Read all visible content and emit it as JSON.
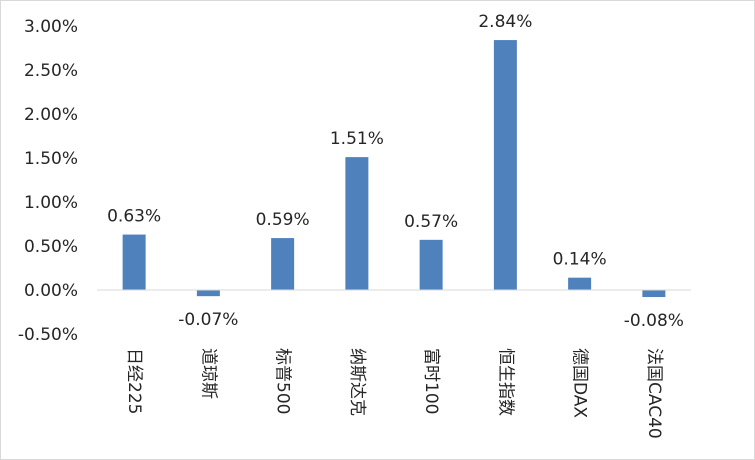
{
  "chart_data": {
    "type": "bar",
    "title": "",
    "xlabel": "",
    "ylabel": "",
    "categories": [
      "日经225",
      "道琼斯",
      "标普500",
      "纳斯达克",
      "富时100",
      "恒生指数",
      "德国DAX",
      "法国CAC40"
    ],
    "values": [
      0.63,
      -0.07,
      0.59,
      1.51,
      0.57,
      2.84,
      0.14,
      -0.08
    ],
    "data_labels": [
      "0.63%",
      "-0.07%",
      "0.59%",
      "1.51%",
      "0.57%",
      "2.84%",
      "0.14%",
      "-0.08%"
    ],
    "ylim": [
      -0.5,
      3.0
    ],
    "y_ticks": [
      3.0,
      2.5,
      2.0,
      1.5,
      1.0,
      0.5,
      0.0,
      -0.5
    ],
    "y_tick_labels": [
      "3.00%",
      "2.50%",
      "2.00%",
      "1.50%",
      "1.00%",
      "0.50%",
      "0.00%",
      "-0.50%"
    ],
    "grid": false,
    "legend": "none",
    "bar_color": "#4f81bd",
    "axis_color": "#d9d9d9"
  }
}
